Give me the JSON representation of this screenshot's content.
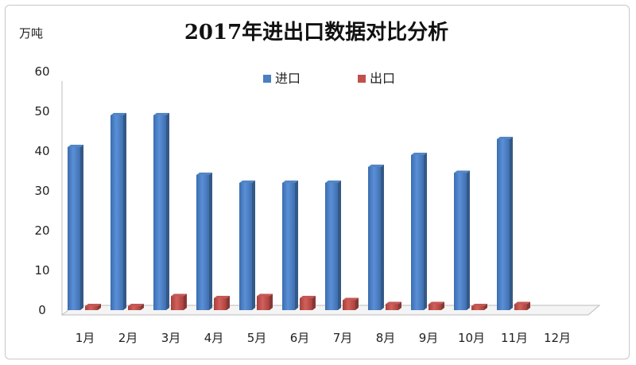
{
  "chart_data": {
    "type": "bar",
    "title": "2017年进出口数据对比分析",
    "unit_label": "万吨",
    "categories": [
      "1月",
      "2月",
      "3月",
      "4月",
      "5月",
      "6月",
      "7月",
      "8月",
      "9月",
      "10月",
      "11月",
      "12月"
    ],
    "series": [
      {
        "name": "进口",
        "color": "#4a7fc1",
        "values": [
          41,
          49,
          49,
          34,
          32,
          32,
          32,
          36,
          39,
          34.5,
          43,
          null
        ]
      },
      {
        "name": "出口",
        "color": "#c0504d",
        "values": [
          1,
          1,
          3.5,
          3,
          3.5,
          3,
          2.5,
          1.5,
          1.5,
          1,
          1.5,
          null
        ]
      }
    ],
    "yticks": [
      0,
      10,
      20,
      30,
      40,
      50,
      60
    ],
    "ylim": [
      0,
      60
    ],
    "legend": "top-center",
    "grid": false
  }
}
